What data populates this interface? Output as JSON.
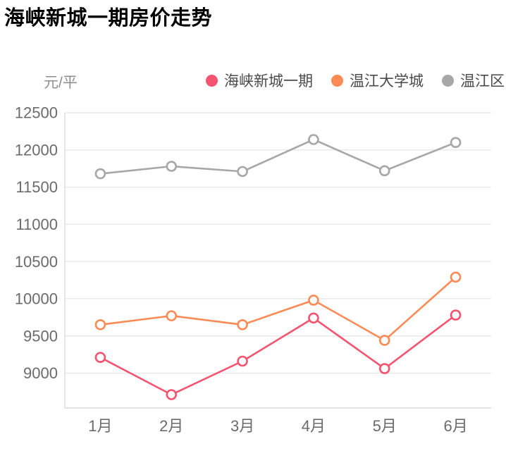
{
  "title": "海峡新城一期房价走势",
  "unit_label": "元/平",
  "legend": [
    {
      "label": "海峡新城一期",
      "color": "#F4546F"
    },
    {
      "label": "温江大学城",
      "color": "#FB8B55"
    },
    {
      "label": "温江区",
      "color": "#A7A7A7"
    }
  ],
  "chart_data": {
    "type": "line",
    "title": "海峡新城一期房价走势",
    "ylabel": "元/平",
    "categories": [
      "1月",
      "2月",
      "3月",
      "4月",
      "5月",
      "6月"
    ],
    "series": [
      {
        "name": "海峡新城一期",
        "color": "#F4546F",
        "values": [
          9210,
          8710,
          9160,
          9740,
          9060,
          9780
        ]
      },
      {
        "name": "温江大学城",
        "color": "#FB8B55",
        "values": [
          9650,
          9770,
          9650,
          9980,
          9440,
          10290
        ]
      },
      {
        "name": "温江区",
        "color": "#A7A7A7",
        "values": [
          11680,
          11780,
          11710,
          12140,
          11720,
          12100
        ]
      }
    ],
    "ylim": [
      8530,
      12500
    ],
    "yticks": [
      9000,
      9500,
      10000,
      10500,
      11000,
      11500,
      12000,
      12500
    ],
    "grid": true,
    "legend_position": "top",
    "marker": "open-circle"
  },
  "colors": {
    "grid_line": "#E8E8E8",
    "axis_line": "#DCDCDC",
    "tick_text": "#6B6B6B",
    "legend_text": "#4A4A4A",
    "unit_text": "#8F8F8F",
    "title_text": "#000000",
    "marker_fill": "#FFFFFF"
  }
}
